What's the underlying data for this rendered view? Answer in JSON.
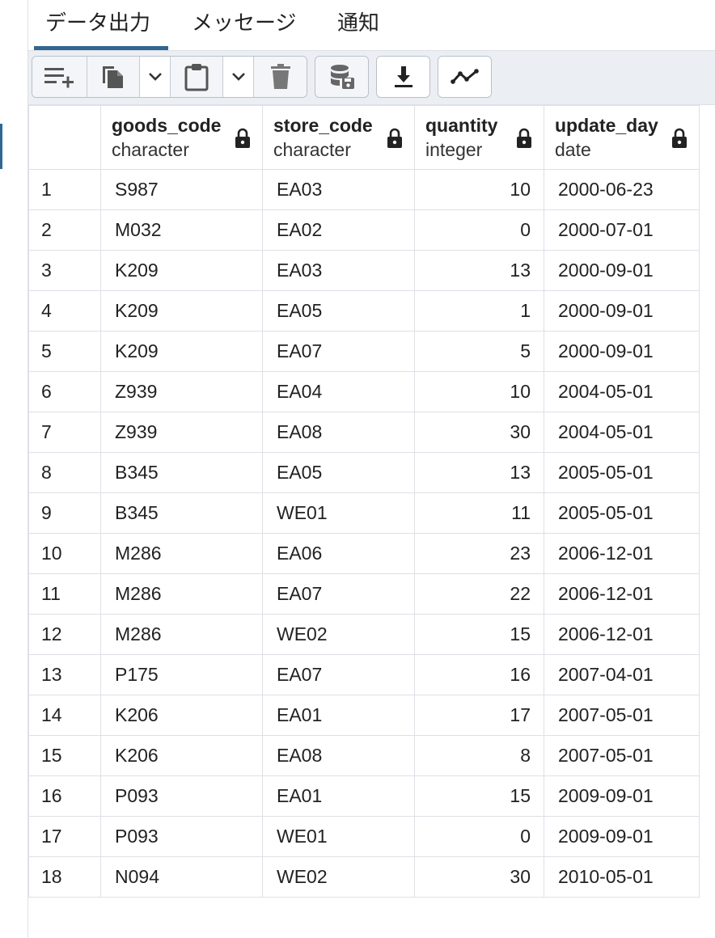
{
  "tabs": [
    {
      "label": "データ出力",
      "active": true
    },
    {
      "label": "メッセージ",
      "active": false
    },
    {
      "label": "通知",
      "active": false
    }
  ],
  "toolbar": {
    "buttons": [
      {
        "icon": "add-row-icon"
      },
      {
        "icon": "copy-icon"
      },
      {
        "icon": "chevron-down-icon"
      },
      {
        "icon": "paste-icon"
      },
      {
        "icon": "chevron-down-icon"
      },
      {
        "icon": "delete-icon"
      },
      {
        "icon": "save-data-icon"
      },
      {
        "icon": "download-icon"
      },
      {
        "icon": "graph-visualiser-icon"
      }
    ]
  },
  "grid": {
    "columns": [
      {
        "name": "goods_code",
        "type": "character",
        "icon": "lock-icon"
      },
      {
        "name": "store_code",
        "type": "character",
        "icon": "lock-icon"
      },
      {
        "name": "quantity",
        "type": "integer",
        "icon": "lock-icon"
      },
      {
        "name": "update_day",
        "type": "date",
        "icon": "lock-icon"
      }
    ],
    "rows": [
      [
        "1",
        "S987",
        "EA03",
        "10",
        "2000-06-23"
      ],
      [
        "2",
        "M032",
        "EA02",
        "0",
        "2000-07-01"
      ],
      [
        "3",
        "K209",
        "EA03",
        "13",
        "2000-09-01"
      ],
      [
        "4",
        "K209",
        "EA05",
        "1",
        "2000-09-01"
      ],
      [
        "5",
        "K209",
        "EA07",
        "5",
        "2000-09-01"
      ],
      [
        "6",
        "Z939",
        "EA04",
        "10",
        "2004-05-01"
      ],
      [
        "7",
        "Z939",
        "EA08",
        "30",
        "2004-05-01"
      ],
      [
        "8",
        "B345",
        "EA05",
        "13",
        "2005-05-01"
      ],
      [
        "9",
        "B345",
        "WE01",
        "11",
        "2005-05-01"
      ],
      [
        "10",
        "M286",
        "EA06",
        "23",
        "2006-12-01"
      ],
      [
        "11",
        "M286",
        "EA07",
        "22",
        "2006-12-01"
      ],
      [
        "12",
        "M286",
        "WE02",
        "15",
        "2006-12-01"
      ],
      [
        "13",
        "P175",
        "EA07",
        "16",
        "2007-04-01"
      ],
      [
        "14",
        "K206",
        "EA01",
        "17",
        "2007-05-01"
      ],
      [
        "15",
        "K206",
        "EA08",
        "8",
        "2007-05-01"
      ],
      [
        "16",
        "P093",
        "EA01",
        "15",
        "2009-09-01"
      ],
      [
        "17",
        "P093",
        "WE01",
        "0",
        "2009-09-01"
      ],
      [
        "18",
        "N094",
        "WE02",
        "30",
        "2010-05-01"
      ]
    ]
  },
  "colors": {
    "accent": "#326690",
    "toolbar_bg": "#ebeef3",
    "border": "#dde0e6"
  }
}
